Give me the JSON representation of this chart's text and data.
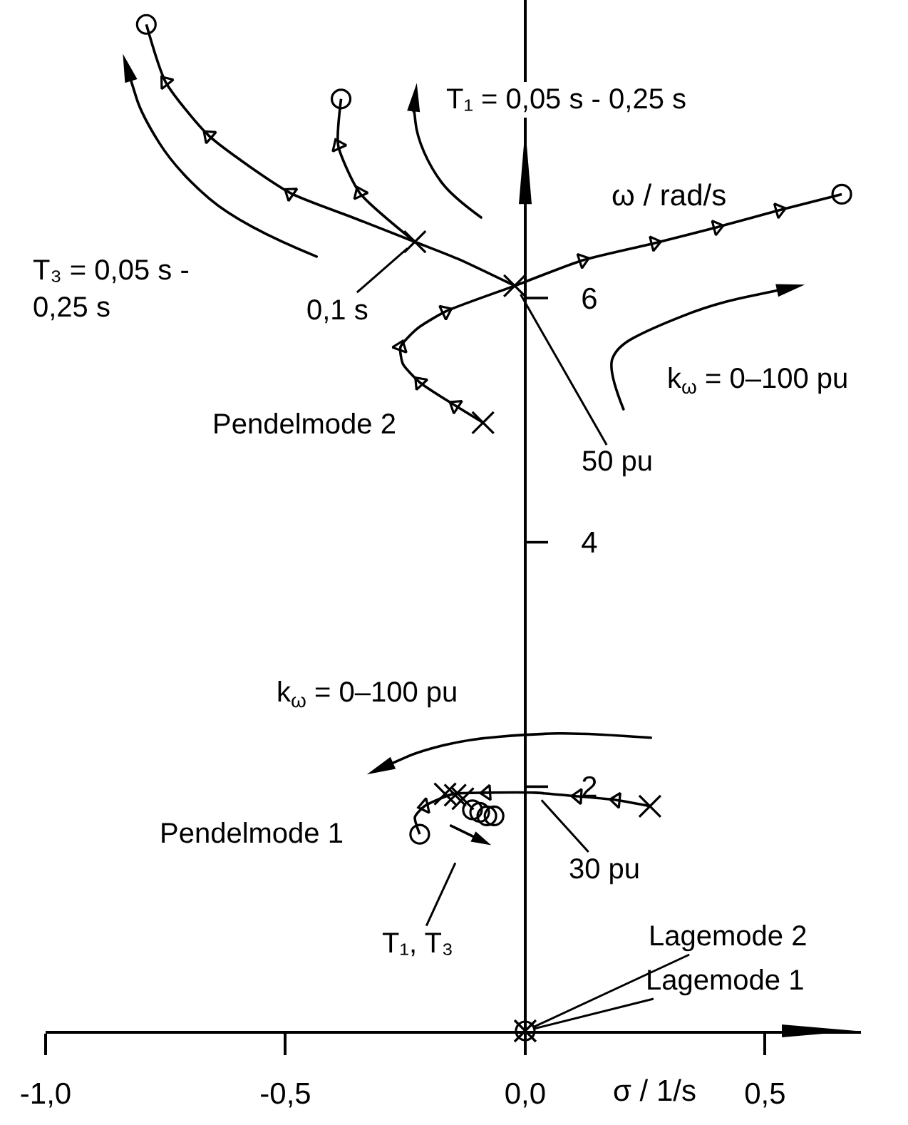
{
  "chart_data": {
    "type": "line",
    "xlabel": "σ / 1/s",
    "ylabel": "ω / rad/s",
    "xlim": [
      -1.0,
      0.7
    ],
    "ylim": [
      0,
      8.44
    ],
    "xticks": [
      {
        "value": -1,
        "label": "-1,0"
      },
      {
        "value": -0.5,
        "label": "-0,5"
      },
      {
        "value": 0,
        "label": "0,0"
      },
      {
        "value": 0.5,
        "label": "0,5"
      }
    ],
    "yticks": [
      2,
      4,
      6
    ],
    "series": [
      {
        "type": "line",
        "color": "#000000",
        "x": [
          -0.088,
          -0.146,
          -0.22,
          -0.255,
          -0.26,
          -0.225,
          -0.166,
          -0.022,
          0.12,
          0.27,
          0.4,
          0.53,
          0.66
        ],
        "values": [
          4.98,
          5.12,
          5.31,
          5.46,
          5.6,
          5.75,
          5.89,
          6.1,
          6.31,
          6.45,
          6.58,
          6.72,
          6.85
        ]
      },
      {
        "type": "line",
        "color": "#000000",
        "x": [
          -0.022,
          -0.14,
          -0.23,
          -0.36,
          -0.49,
          -0.66,
          -0.75,
          -0.79
        ],
        "values": [
          6.1,
          6.32,
          6.46,
          6.66,
          6.86,
          7.33,
          7.77,
          8.24
        ]
      },
      {
        "type": "line",
        "color": "#000000",
        "x": [
          -0.23,
          -0.345,
          -0.39,
          -0.384
        ],
        "values": [
          6.46,
          6.86,
          7.25,
          7.63
        ]
      },
      {
        "type": "line",
        "color": "#000000",
        "x": [
          0.26,
          0.19,
          0.11,
          0.02,
          -0.08,
          -0.15,
          -0.21,
          -0.23,
          -0.22
        ],
        "values": [
          1.84,
          1.89,
          1.92,
          1.95,
          1.95,
          1.94,
          1.84,
          1.75,
          1.61
        ]
      },
      {
        "type": "scatter",
        "marker": "cross",
        "color": "#000000",
        "x": [
          -0.088,
          -0.022,
          -0.23,
          0.26,
          -0.167,
          -0.146,
          -0.13,
          0
        ],
        "values": [
          4.98,
          6.1,
          6.46,
          1.84,
          1.94,
          1.93,
          1.9,
          0
        ]
      },
      {
        "type": "scatter",
        "marker": "circle",
        "color": "#000000",
        "x": [
          0.66,
          -0.79,
          -0.384,
          -0.22,
          -0.11,
          -0.095,
          -0.08,
          -0.065,
          0
        ],
        "values": [
          6.85,
          8.24,
          7.63,
          1.61,
          1.81,
          1.79,
          1.76,
          1.76,
          0
        ]
      },
      {
        "type": "scatter",
        "marker": "triangle",
        "color": "#000000",
        "x": [
          -0.146,
          -0.22,
          -0.26,
          -0.166,
          0.12,
          0.27,
          0.4,
          0.53
        ],
        "values": [
          5.12,
          5.31,
          5.6,
          5.89,
          6.31,
          6.45,
          6.58,
          6.72
        ]
      },
      {
        "type": "scatter",
        "marker": "triangle",
        "color": "#000000",
        "x": [
          -0.49,
          -0.66,
          -0.75
        ],
        "values": [
          6.86,
          7.33,
          7.77
        ]
      },
      {
        "type": "scatter",
        "marker": "triangle",
        "color": "#000000",
        "x": [
          -0.345,
          -0.39
        ],
        "values": [
          6.86,
          7.25
        ]
      },
      {
        "type": "scatter",
        "marker": "triangle",
        "color": "#000000",
        "x": [
          0.19,
          0.11,
          -0.08,
          -0.21
        ],
        "values": [
          1.89,
          1.92,
          1.95,
          1.84
        ]
      }
    ],
    "annotations": [
      "T₁ = 0,05 s - 0,25 s",
      "T₃ = 0,05 s -\n0,25 s",
      {
        "text": "0,1 s",
        "x": -0.23,
        "y": 6.46
      },
      {
        "text": "50 pu",
        "x": -0.02,
        "y": 6.1
      },
      "k$_{ω}$ = 0–100 pu",
      "Pendelmode 2",
      "k$_{ω}$ = 0–100 pu",
      "Pendelmode 1",
      {
        "text": "30 pu",
        "x": 0.02,
        "y": 1.95
      },
      "T₁, T₃",
      {
        "text": "Lagemode 2",
        "x": 0,
        "y": 0
      },
      {
        "text": "Lagemode 1",
        "x": 0,
        "y": 0
      }
    ]
  }
}
